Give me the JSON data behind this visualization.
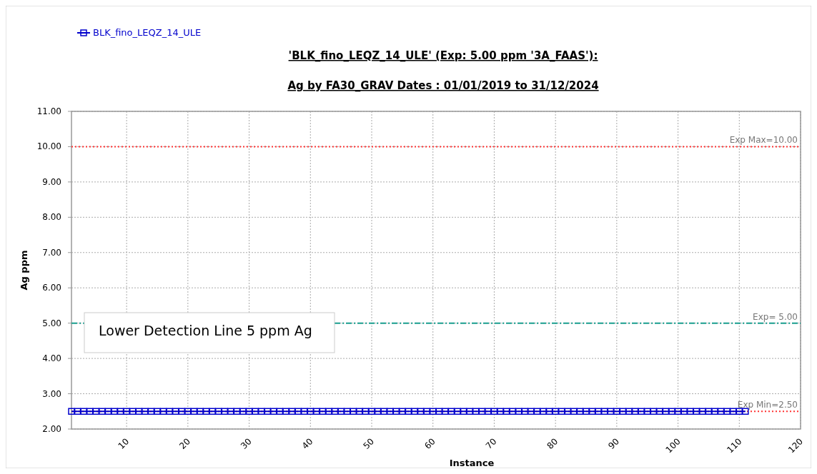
{
  "chart_data": {
    "type": "line",
    "title": "'BLK_fino_LEQZ_14_ULE' (Exp: 5.00 ppm '3A_FAAS'):",
    "subtitle": "Ag by FA30_GRAV Dates : 01/01/2019 to 31/12/2024",
    "xlabel": "Instance",
    "ylabel": "Ag ppm",
    "x": [
      1,
      2,
      3,
      4,
      5,
      6,
      7,
      8,
      9,
      10,
      11,
      12,
      13,
      14,
      15,
      16,
      17,
      18,
      19,
      20,
      21,
      22,
      23,
      24,
      25,
      26,
      27,
      28,
      29,
      30,
      31,
      32,
      33,
      34,
      35,
      36,
      37,
      38,
      39,
      40,
      41,
      42,
      43,
      44,
      45,
      46,
      47,
      48,
      49,
      50,
      51,
      52,
      53,
      54,
      55,
      56,
      57,
      58,
      59,
      60,
      61,
      62,
      63,
      64,
      65,
      66,
      67,
      68,
      69,
      70,
      71,
      72,
      73,
      74,
      75,
      76,
      77,
      78,
      79,
      80,
      81,
      82,
      83,
      84,
      85,
      86,
      87,
      88,
      89,
      90,
      91,
      92,
      93,
      94,
      95,
      96,
      97,
      98,
      99,
      100,
      101,
      102,
      103,
      104,
      105,
      106,
      107,
      108,
      109,
      110,
      111
    ],
    "series": [
      {
        "name": "BLK_fino_LEQZ_14_ULE",
        "color": "#0000cc",
        "values": [
          2.5,
          2.5,
          2.5,
          2.5,
          2.5,
          2.5,
          2.5,
          2.5,
          2.5,
          2.5,
          2.5,
          2.5,
          2.5,
          2.5,
          2.5,
          2.5,
          2.5,
          2.5,
          2.5,
          2.5,
          2.5,
          2.5,
          2.5,
          2.5,
          2.5,
          2.5,
          2.5,
          2.5,
          2.5,
          2.5,
          2.5,
          2.5,
          2.5,
          2.5,
          2.5,
          2.5,
          2.5,
          2.5,
          2.5,
          2.5,
          2.5,
          2.5,
          2.5,
          2.5,
          2.5,
          2.5,
          2.5,
          2.5,
          2.5,
          2.5,
          2.5,
          2.5,
          2.5,
          2.5,
          2.5,
          2.5,
          2.5,
          2.5,
          2.5,
          2.5,
          2.5,
          2.5,
          2.5,
          2.5,
          2.5,
          2.5,
          2.5,
          2.5,
          2.5,
          2.5,
          2.5,
          2.5,
          2.5,
          2.5,
          2.5,
          2.5,
          2.5,
          2.5,
          2.5,
          2.5,
          2.5,
          2.5,
          2.5,
          2.5,
          2.5,
          2.5,
          2.5,
          2.5,
          2.5,
          2.5,
          2.5,
          2.5,
          2.5,
          2.5,
          2.5,
          2.5,
          2.5,
          2.5,
          2.5,
          2.5,
          2.5,
          2.5,
          2.5,
          2.5,
          2.5,
          2.5,
          2.5,
          2.5,
          2.5,
          2.5,
          2.5
        ]
      }
    ],
    "xlim": [
      1,
      120
    ],
    "xticks": [
      10,
      20,
      30,
      40,
      50,
      60,
      70,
      80,
      90,
      100,
      110,
      120
    ],
    "ylim": [
      2,
      11
    ],
    "yticks": [
      {
        "value": 2,
        "label": "2.00"
      },
      {
        "value": 3,
        "label": "3.00"
      },
      {
        "value": 4,
        "label": "4.00"
      },
      {
        "value": 5,
        "label": "5.00"
      },
      {
        "value": 6,
        "label": "6.00"
      },
      {
        "value": 7,
        "label": "7.00"
      },
      {
        "value": 8,
        "label": "8.00"
      },
      {
        "value": 9,
        "label": "9.00"
      },
      {
        "value": 10,
        "label": "10.00"
      },
      {
        "value": 11,
        "label": "11.00"
      }
    ],
    "ref_lines": [
      {
        "axis": "y",
        "value": 10,
        "label": "Exp Max=10.00",
        "color": "#ff3333",
        "line_style": "dotted"
      },
      {
        "axis": "y",
        "value": 5,
        "label": "Exp= 5.00",
        "color": "#1a9e8f",
        "line_style": "dashed"
      },
      {
        "axis": "y",
        "value": 2.5,
        "label": "Exp Min=2.50",
        "color": "#ff3333",
        "line_style": "dotted"
      }
    ],
    "annotations": [
      "Lower Detection Line 5 ppm Ag"
    ],
    "grid": true,
    "legend": "top left",
    "marker": "square",
    "line_style": "solid"
  }
}
